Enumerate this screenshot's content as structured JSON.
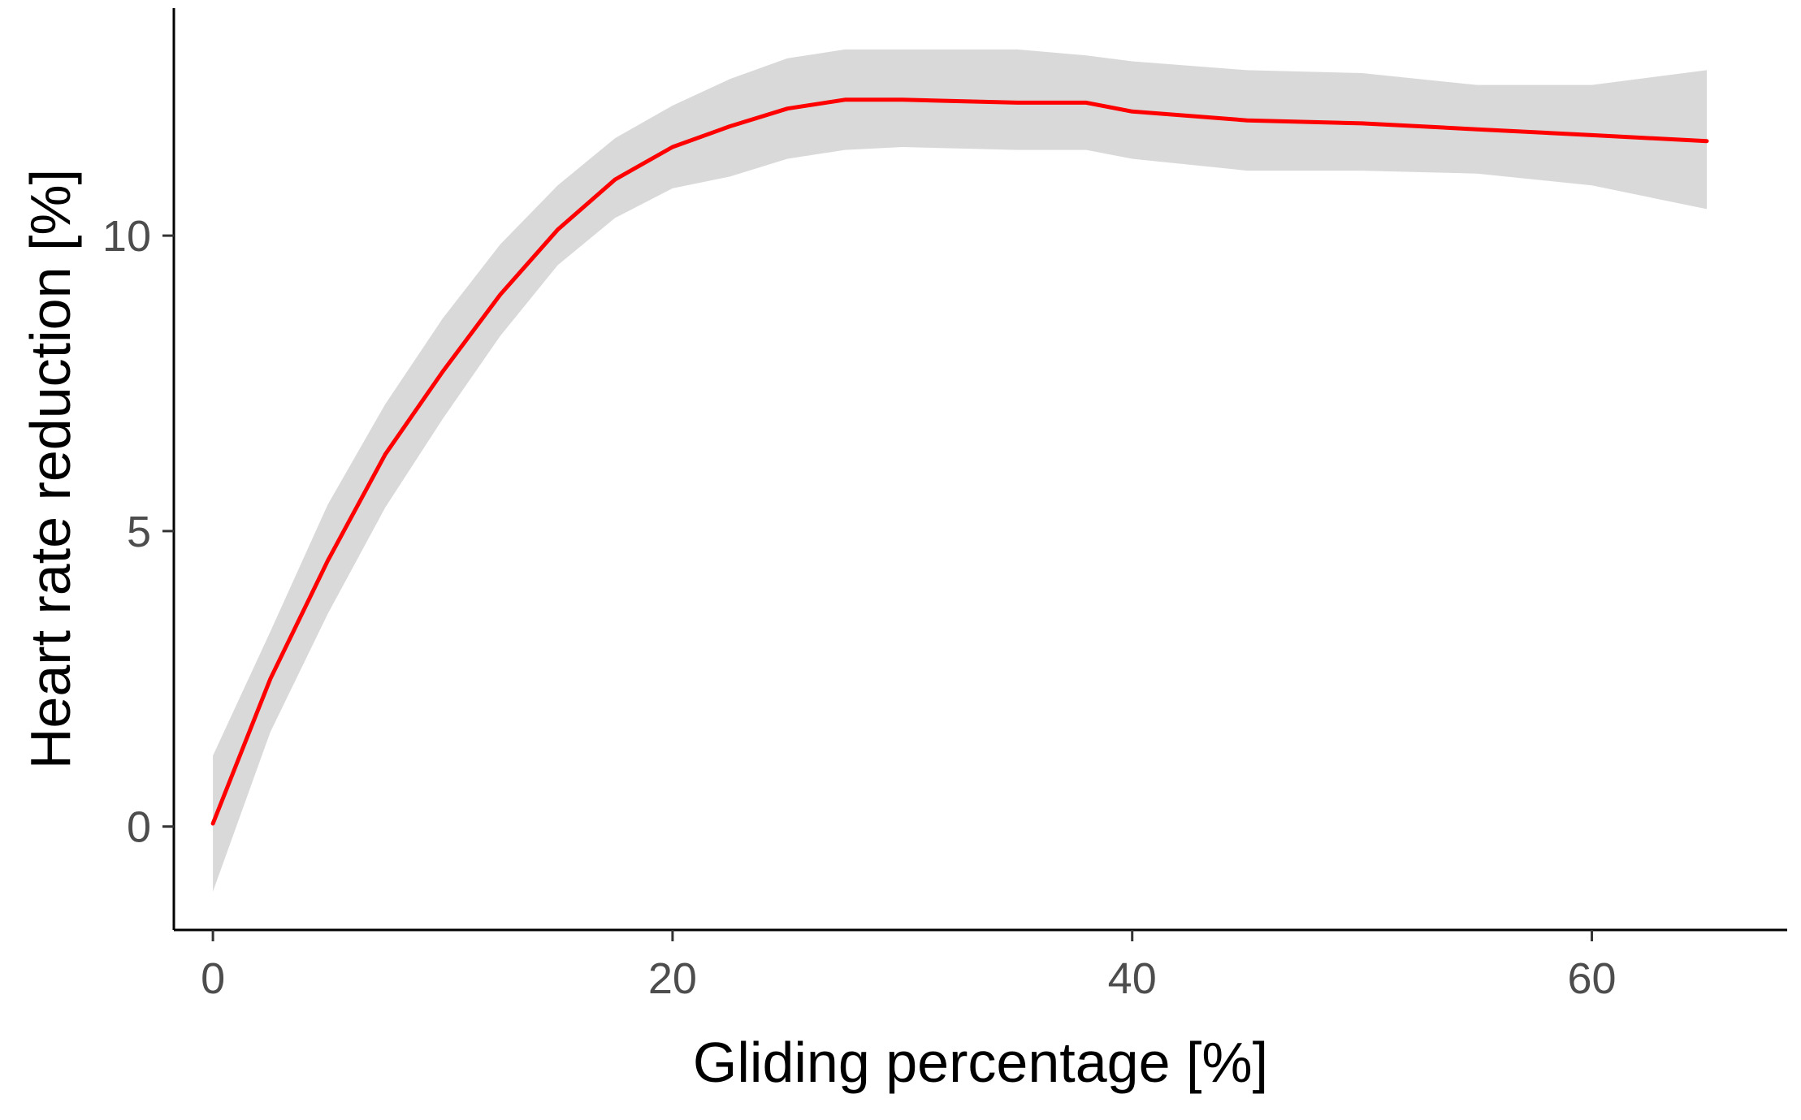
{
  "chart_data": {
    "type": "line",
    "title": "",
    "xlabel": "Gliding percentage [%]",
    "ylabel": "Heart rate reduction [%]",
    "xlim": [
      -1.7,
      68.5
    ],
    "ylim": [
      -1.75,
      13.85
    ],
    "x_ticks": [
      0,
      20,
      40,
      60
    ],
    "x_tick_labels": [
      "0",
      "20",
      "40",
      "60"
    ],
    "y_ticks": [
      0,
      5,
      10
    ],
    "y_tick_labels": [
      "0",
      "5",
      "10"
    ],
    "grid": false,
    "legend": "none",
    "series": [
      {
        "style": "fit-line-with-confidence-band",
        "line_color": "#ff0000",
        "band_color": "#d9d9d9",
        "x": [
          0,
          2.5,
          5,
          7.5,
          10,
          12.5,
          15,
          17.5,
          20,
          22.5,
          25,
          27.5,
          30,
          35,
          38,
          40,
          45,
          50,
          55,
          60,
          65
        ],
        "y": [
          0.05,
          2.5,
          4.5,
          6.3,
          7.7,
          9.0,
          10.1,
          10.95,
          11.5,
          11.85,
          12.15,
          12.3,
          12.3,
          12.25,
          12.25,
          12.1,
          11.95,
          11.9,
          11.8,
          11.7,
          11.6
        ],
        "lower": [
          -1.1,
          1.6,
          3.6,
          5.4,
          6.9,
          8.3,
          9.5,
          10.3,
          10.8,
          11.0,
          11.3,
          11.45,
          11.5,
          11.45,
          11.45,
          11.3,
          11.1,
          11.1,
          11.05,
          10.85,
          10.45
        ],
        "upper": [
          1.2,
          3.3,
          5.45,
          7.15,
          8.6,
          9.85,
          10.85,
          11.65,
          12.2,
          12.65,
          13.0,
          13.15,
          13.15,
          13.15,
          13.05,
          12.95,
          12.8,
          12.75,
          12.55,
          12.55,
          12.8
        ]
      }
    ]
  }
}
